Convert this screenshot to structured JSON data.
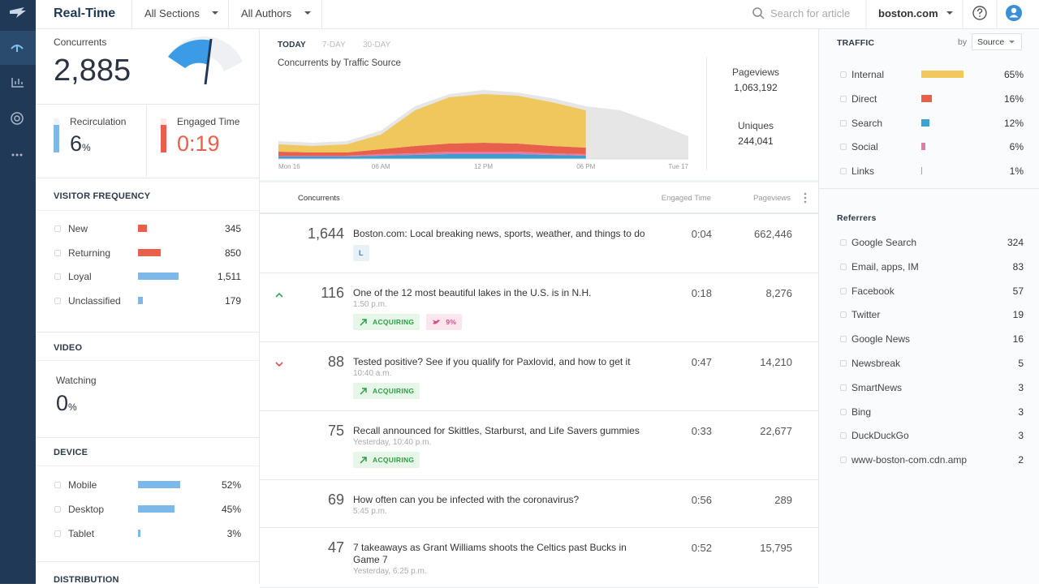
{
  "app_title": "Real-Time",
  "nav": {
    "sections": "All Sections",
    "authors": "All Authors",
    "search_placeholder": "Search for article",
    "site": "boston.com"
  },
  "concurrents": {
    "label": "Concurrents",
    "value": "2,885"
  },
  "recirculation": {
    "label": "Recirculation",
    "value": "6",
    "unit": "%"
  },
  "engaged_time": {
    "label": "Engaged Time",
    "value": "0:19"
  },
  "visitor_frequency": {
    "title": "VISITOR FREQUENCY",
    "labels": [
      "New",
      "Returning",
      "Loyal",
      "Unclassified"
    ],
    "values": [
      345,
      850,
      1511,
      179
    ],
    "value_labels": [
      "345",
      "850",
      "1,511",
      "179"
    ],
    "colors": [
      "#e8604c",
      "#e8604c",
      "#7cb9e8",
      "#7cb9e8"
    ]
  },
  "video": {
    "title": "VIDEO",
    "label": "Watching",
    "value": "0",
    "unit": "%"
  },
  "device": {
    "title": "DEVICE",
    "labels": [
      "Mobile",
      "Desktop",
      "Tablet"
    ],
    "values": [
      52,
      45,
      3
    ],
    "value_labels": [
      "52%",
      "45%",
      "3%"
    ],
    "colors": [
      "#7cb9e8",
      "#7cb9e8",
      "#7cb9e8"
    ]
  },
  "distribution": {
    "title": "DISTRIBUTION"
  },
  "chart": {
    "type": "area",
    "tabs": [
      "TODAY",
      "7-DAY",
      "30-DAY"
    ],
    "title": "Concurrents by Traffic Source",
    "categories": [
      "Mon 16",
      null,
      null,
      "06 AM",
      null,
      null,
      "12 PM",
      null,
      null,
      "06 PM",
      null,
      null,
      "Tue 17"
    ],
    "ylim": [
      0,
      3500
    ],
    "background": {
      "color": "#e6e6e6",
      "values": [
        770,
        700,
        770,
        1225,
        2275,
        2800,
        2975,
        2870,
        2625,
        2275,
        2100,
        1575,
        980
      ]
    },
    "series": [
      {
        "color": "#3a9fd0",
        "values": [
          105,
          105,
          105,
          140,
          175,
          210,
          210,
          210,
          175,
          140,
          null,
          null,
          null
        ]
      },
      {
        "color": "#e57aa6",
        "values": [
          35,
          35,
          35,
          70,
          70,
          105,
          105,
          105,
          70,
          70,
          null,
          null,
          null
        ]
      },
      {
        "color": "#e8604c",
        "values": [
          175,
          140,
          140,
          210,
          315,
          350,
          385,
          350,
          315,
          280,
          null,
          null,
          null
        ]
      },
      {
        "color": "#f0c75c",
        "values": [
          315,
          280,
          350,
          630,
          1540,
          1995,
          2100,
          2065,
          1890,
          1610,
          null,
          null,
          null
        ]
      }
    ]
  },
  "totals": {
    "pageviews_label": "Pageviews",
    "pageviews": "1,063,192",
    "uniques_label": "Uniques",
    "uniques": "244,041"
  },
  "table": {
    "columns": [
      "Concurrents",
      "Engaged Time",
      "Pageviews"
    ],
    "rows": [
      {
        "concurrents": "1,644",
        "title": "Boston.com: Local breaking news, sports, weather, and things to do",
        "engaged": "0:04",
        "pageviews": "662,446",
        "tags": [
          {
            "text": "L",
            "kind": "section"
          }
        ]
      },
      {
        "trend": "up",
        "concurrents": "116",
        "title": "One of the 12 most beautiful lakes in the U.S. is in N.H.",
        "time": "1:50 p.m.",
        "engaged": "0:18",
        "pageviews": "8,276",
        "tags": [
          {
            "text": "ACQUIRING",
            "kind": "acquiring"
          },
          {
            "text": "9%",
            "kind": "twitter"
          }
        ]
      },
      {
        "trend": "down",
        "concurrents": "88",
        "title": "Tested positive? See if you qualify for Paxlovid, and how to get it",
        "time": "10:40 a.m.",
        "engaged": "0:47",
        "pageviews": "14,210",
        "tags": [
          {
            "text": "ACQUIRING",
            "kind": "acquiring"
          }
        ]
      },
      {
        "concurrents": "75",
        "title": "Recall announced for Skittles, Starburst, and Life Savers gummies",
        "time": "Yesterday, 10:40 p.m.",
        "engaged": "0:33",
        "pageviews": "22,677",
        "tags": [
          {
            "text": "ACQUIRING",
            "kind": "acquiring"
          }
        ]
      },
      {
        "concurrents": "69",
        "title": "How often can you be infected with the coronavirus?",
        "time": "5:45 p.m.",
        "engaged": "0:56",
        "pageviews": "289",
        "tags": []
      },
      {
        "concurrents": "47",
        "title": "7 takeaways as Grant Williams shoots the Celtics past Bucks in Game 7",
        "time": "Yesterday, 6:25 p.m.",
        "engaged": "0:52",
        "pageviews": "15,795",
        "tags": []
      }
    ]
  },
  "traffic": {
    "title": "TRAFFIC",
    "by": "by",
    "source": "Source",
    "labels": [
      "Internal",
      "Direct",
      "Search",
      "Social",
      "Links"
    ],
    "values": [
      65,
      16,
      12,
      6,
      1
    ],
    "value_labels": [
      "65%",
      "16%",
      "12%",
      "6%",
      "1%"
    ],
    "colors": [
      "#f2c75c",
      "#e8604c",
      "#3aa3d0",
      "#e57aa6",
      "#9aa5b1"
    ]
  },
  "referrers": {
    "title": "Referrers",
    "labels": [
      "Google Search",
      "Email, apps, IM",
      "Facebook",
      "Twitter",
      "Google News",
      "Newsbreak",
      "SmartNews",
      "Bing",
      "DuckDuckGo",
      "www-boston-com.cdn.amp"
    ],
    "values": [
      324,
      83,
      57,
      19,
      16,
      5,
      3,
      3,
      3,
      2
    ]
  }
}
